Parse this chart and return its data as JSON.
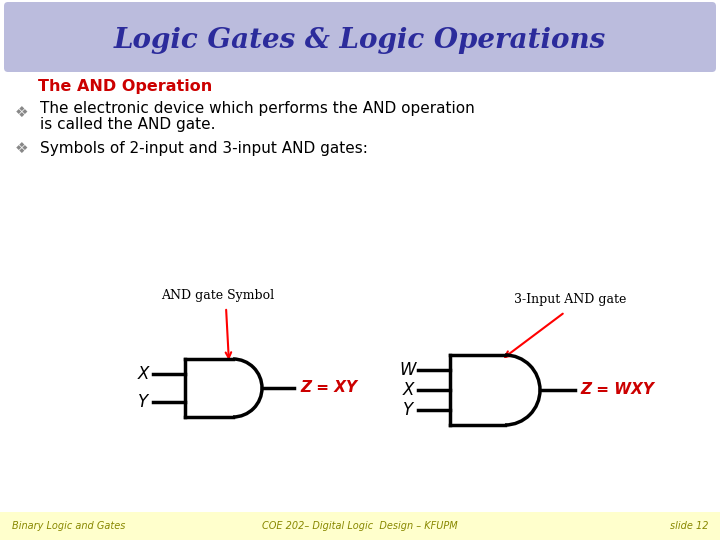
{
  "title": "Logic Gates & Logic Operations",
  "title_color": "#2B2B9B",
  "title_bg_color": "#BBBCDD",
  "section_title": "The AND Operation",
  "section_title_color": "#CC0000",
  "bullet1_line1": "The electronic device which performs the AND operation",
  "bullet1_line2": "is called the AND gate.",
  "bullet2": "Symbols of 2-input and 3-input AND gates:",
  "bullet_color": "#000000",
  "label_and2_title": "AND gate Symbol",
  "label_and3_title": "3-Input AND gate",
  "label_z_xy": "Z = XY",
  "label_z_wxy": "Z = WXY",
  "label_x2": "X",
  "label_y2": "Y",
  "label_w3": "W",
  "label_x3": "X",
  "label_y3": "Y",
  "footer_left": "Binary Logic and Gates",
  "footer_center": "COE 202– Digital Logic  Design – KFUPM",
  "footer_right": "slide 12",
  "footer_color": "#888800",
  "footer_bg": "#FFFFCC",
  "bg_color": "#FFFFFF"
}
